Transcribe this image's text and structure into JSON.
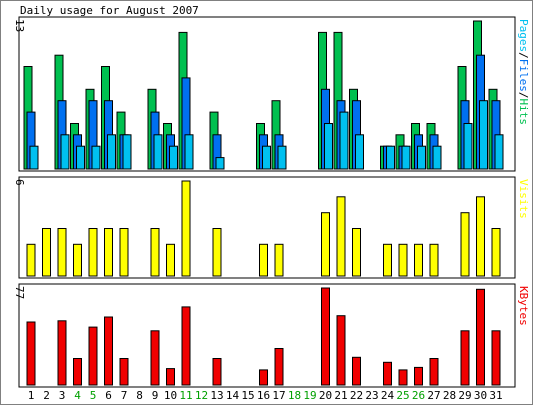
{
  "colors": {
    "hits": "#00c050",
    "files": "#0070f0",
    "pages": "#00c0f0",
    "visits": "#ffff00",
    "kbytes": "#f00000",
    "weekend": "#00a000",
    "weekday": "#000000",
    "border": "#000000"
  },
  "chart_data": {
    "type": "bar",
    "title": "Daily usage for August 2007",
    "categories": [
      "1",
      "2",
      "3",
      "4",
      "5",
      "6",
      "7",
      "8",
      "9",
      "10",
      "11",
      "12",
      "13",
      "14",
      "15",
      "16",
      "17",
      "18",
      "19",
      "20",
      "21",
      "22",
      "23",
      "24",
      "25",
      "26",
      "27",
      "28",
      "29",
      "30",
      "31"
    ],
    "weekend_days": [
      "4",
      "5",
      "11",
      "12",
      "18",
      "19",
      "25",
      "26"
    ],
    "panels": [
      {
        "max_label": "13",
        "ymax": 13,
        "legend": [
          {
            "text": "Pages",
            "series": "pages"
          },
          {
            "text": "/",
            "series": "sep"
          },
          {
            "text": "Files",
            "series": "files"
          },
          {
            "text": "/",
            "series": "sep"
          },
          {
            "text": "Hits",
            "series": "hits"
          }
        ],
        "series": [
          {
            "name": "Hits",
            "key": "hits",
            "values": [
              9,
              0,
              10,
              4,
              7,
              9,
              5,
              0,
              7,
              4,
              12,
              0,
              5,
              0,
              0,
              4,
              6,
              0,
              0,
              12,
              12,
              7,
              0,
              2,
              3,
              4,
              4,
              0,
              9,
              13,
              7
            ]
          },
          {
            "name": "Files",
            "key": "files",
            "values": [
              5,
              0,
              6,
              3,
              6,
              6,
              3,
              0,
              5,
              3,
              8,
              0,
              3,
              0,
              0,
              3,
              3,
              0,
              0,
              7,
              6,
              6,
              0,
              2,
              2,
              3,
              3,
              0,
              6,
              10,
              6
            ]
          },
          {
            "name": "Pages",
            "key": "pages",
            "values": [
              2,
              0,
              3,
              2,
              2,
              3,
              3,
              0,
              3,
              2,
              3,
              0,
              1,
              0,
              0,
              2,
              2,
              0,
              0,
              4,
              5,
              3,
              0,
              2,
              2,
              2,
              2,
              0,
              4,
              6,
              3
            ]
          }
        ]
      },
      {
        "max_label": "6",
        "ymax": 6,
        "legend": [
          {
            "text": "Visits",
            "series": "visits"
          }
        ],
        "series": [
          {
            "name": "Visits",
            "key": "visits",
            "values": [
              2,
              3,
              3,
              2,
              3,
              3,
              3,
              0,
              3,
              2,
              6,
              0,
              3,
              0,
              0,
              2,
              2,
              0,
              0,
              4,
              5,
              3,
              0,
              2,
              2,
              2,
              2,
              0,
              4,
              5,
              3
            ]
          }
        ]
      },
      {
        "max_label": "77",
        "ymax": 77,
        "legend": [
          {
            "text": "KBytes",
            "series": "kbytes"
          }
        ],
        "series": [
          {
            "name": "KBytes",
            "key": "kbytes",
            "values": [
              50,
              0,
              51,
              21,
              46,
              54,
              21,
              0,
              43,
              13,
              62,
              0,
              21,
              0,
              0,
              12,
              29,
              0,
              0,
              77,
              55,
              22,
              0,
              18,
              12,
              14,
              21,
              0,
              43,
              76,
              43
            ]
          }
        ]
      }
    ]
  }
}
